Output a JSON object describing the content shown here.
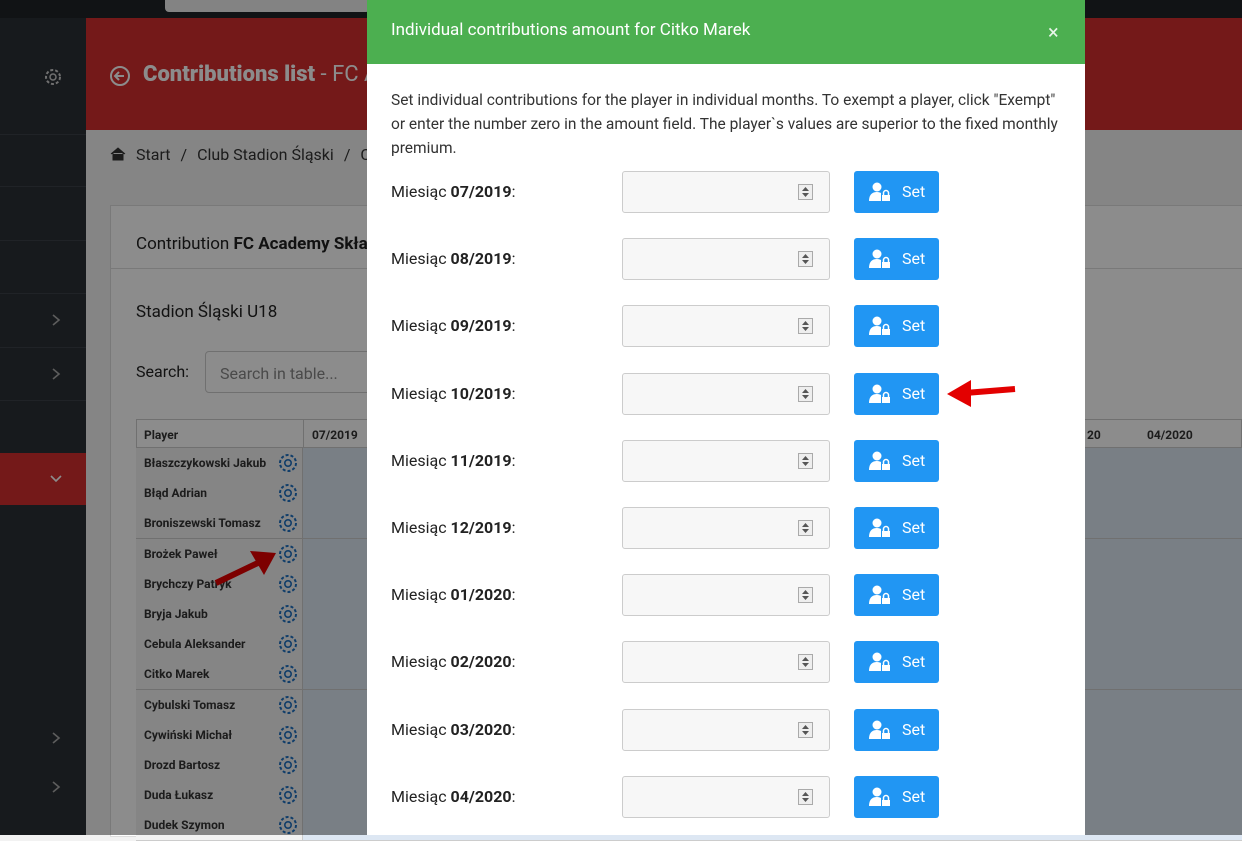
{
  "app": {
    "title_main": "Contributions list",
    "title_rest": "- FC A",
    "breadcrumb": [
      "Start",
      "Club Stadion Śląski",
      "C"
    ],
    "breadcrumb_separator": "/",
    "card_title_prefix": "Contribution",
    "card_title_bold": "FC Academy Skła",
    "team": "Stadion Śląski U18",
    "search_label": "Search:",
    "search_placeholder": "Search in table...",
    "table": {
      "headers": [
        "Player",
        "07/2019",
        "20",
        "04/2020"
      ],
      "rows": [
        "Błaszczykowski Jakub",
        "Błąd Adrian",
        "Broniszewski Tomasz",
        "Brożek Paweł",
        "Brychczy Patryk",
        "Bryja Jakub",
        "Cebula Aleksander",
        "Citko Marek",
        "Cybulski Tomasz",
        "Cywiński Michał",
        "Drozd Bartosz",
        "Duda Łukasz",
        "Dudek Szymon"
      ]
    }
  },
  "modal": {
    "title": "Individual contributions amount for Citko Marek",
    "close": "×",
    "description": "Set individual contributions for the player in individual months. To exempt a player, click \"Exempt\" or enter the number zero in the amount field. The player`s values are superior to the fixed monthly premium.",
    "month_label": "Miesiąc",
    "colon": ":",
    "button": "Set",
    "months": [
      "07/2019",
      "08/2019",
      "09/2019",
      "10/2019",
      "11/2019",
      "12/2019",
      "01/2020",
      "02/2020",
      "03/2020",
      "04/2020"
    ]
  }
}
